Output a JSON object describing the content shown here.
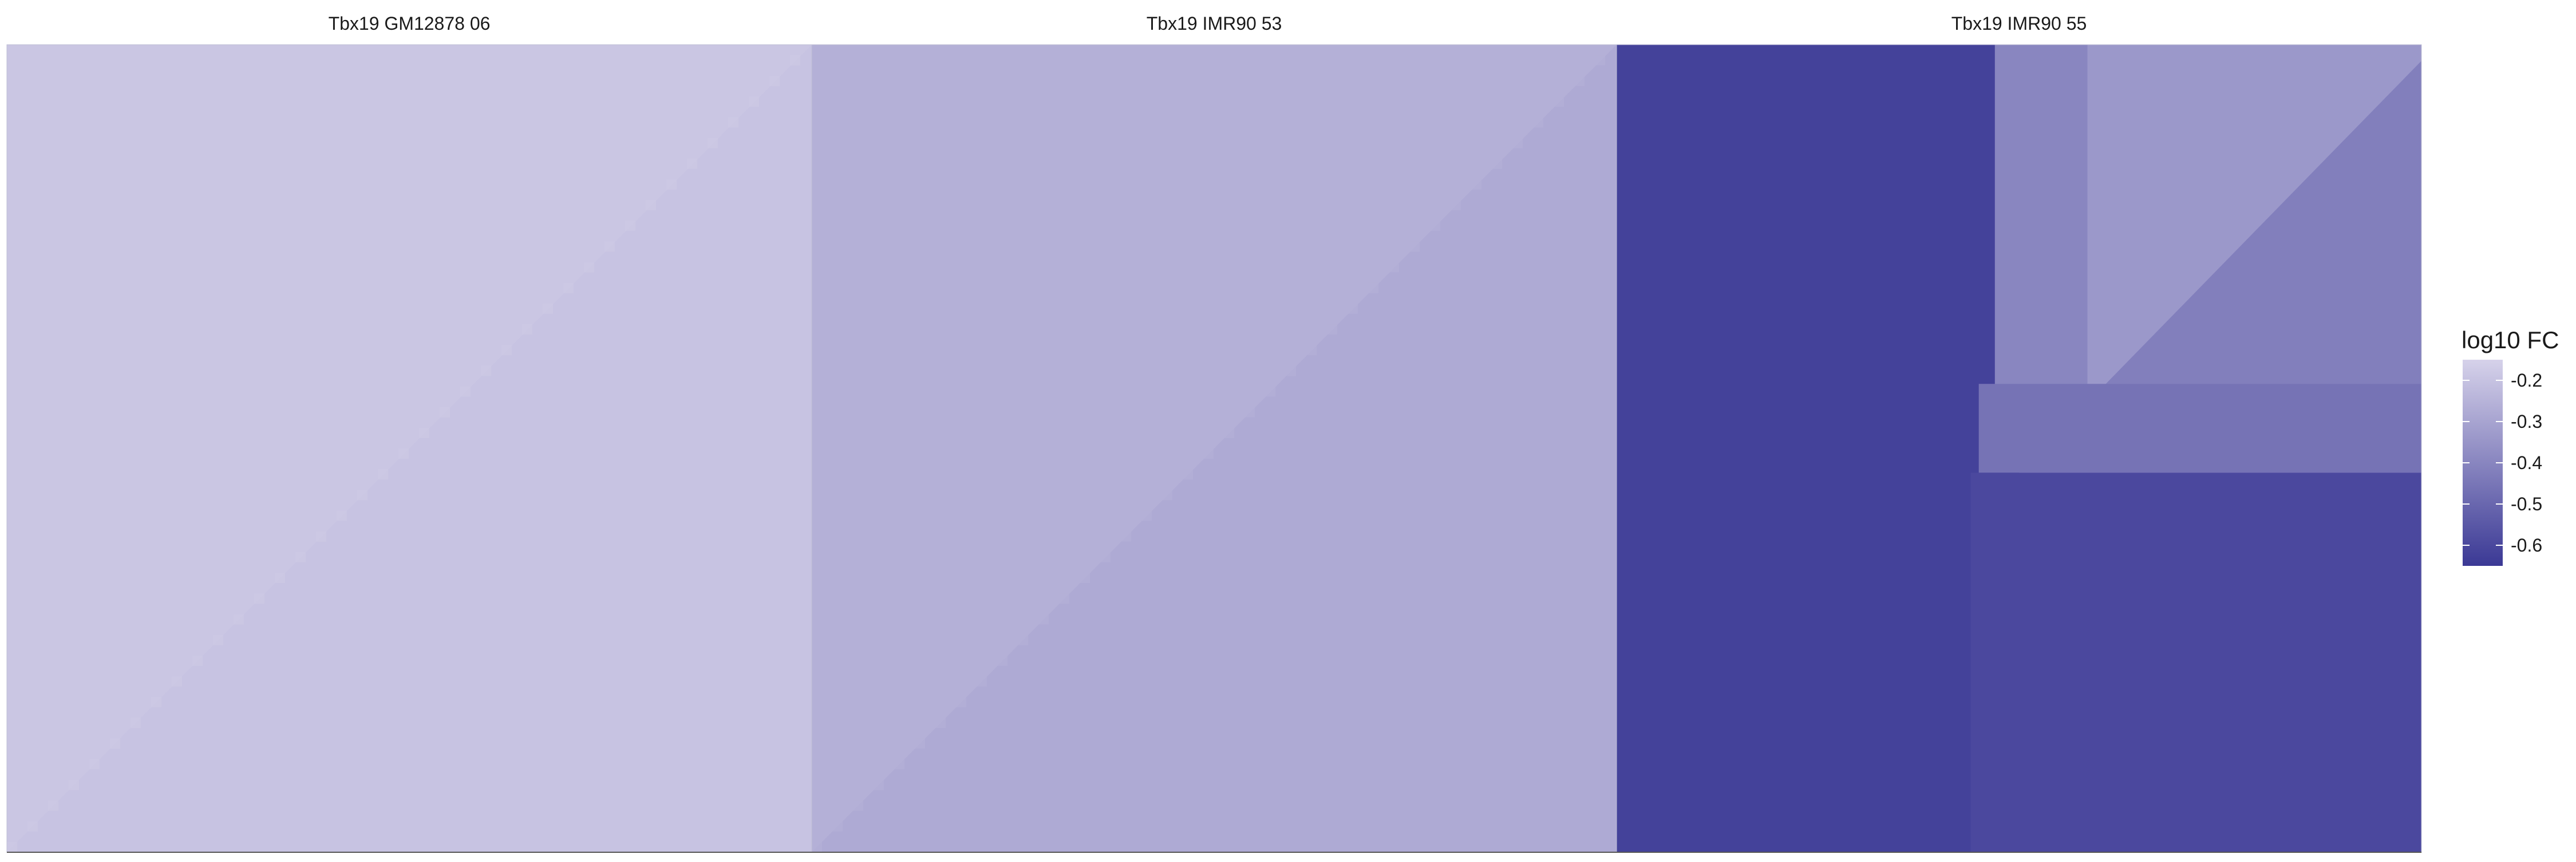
{
  "chart_data": {
    "type": "heatmap",
    "title": "",
    "xlabel": "",
    "ylabel": "",
    "panels": [
      {
        "title": "Tbx19 GM12878 06",
        "regions": [
          {
            "name": "upper-left-triangle",
            "value": -0.19
          },
          {
            "name": "lower-right-triangle",
            "value": -0.2
          }
        ]
      },
      {
        "title": "Tbx19 IMR90 53",
        "regions": [
          {
            "name": "upper-left-triangle",
            "value": -0.26
          },
          {
            "name": "lower-right-triangle",
            "value": -0.28
          }
        ]
      },
      {
        "title": "Tbx19 IMR90 55",
        "regions": [
          {
            "name": "left-block",
            "value": -0.62
          },
          {
            "name": "bottom-block",
            "value": -0.6
          },
          {
            "name": "upper-middle-strip",
            "value": -0.4
          },
          {
            "name": "upper-right-block",
            "value": -0.34
          },
          {
            "name": "right-triangle",
            "value": -0.42
          },
          {
            "name": "middle-band",
            "value": -0.46
          }
        ]
      }
    ],
    "legend": {
      "title": "log10 FC",
      "position": "right",
      "range": [
        -0.65,
        -0.15
      ],
      "ticks": [
        -0.2,
        -0.3,
        -0.4,
        -0.5,
        -0.6
      ],
      "tick_labels": [
        "-0.2",
        "-0.3",
        "-0.4",
        "-0.5",
        "-0.6"
      ],
      "color_low": "#d6d2ea",
      "color_high": "#3b3995"
    },
    "grid": false
  }
}
